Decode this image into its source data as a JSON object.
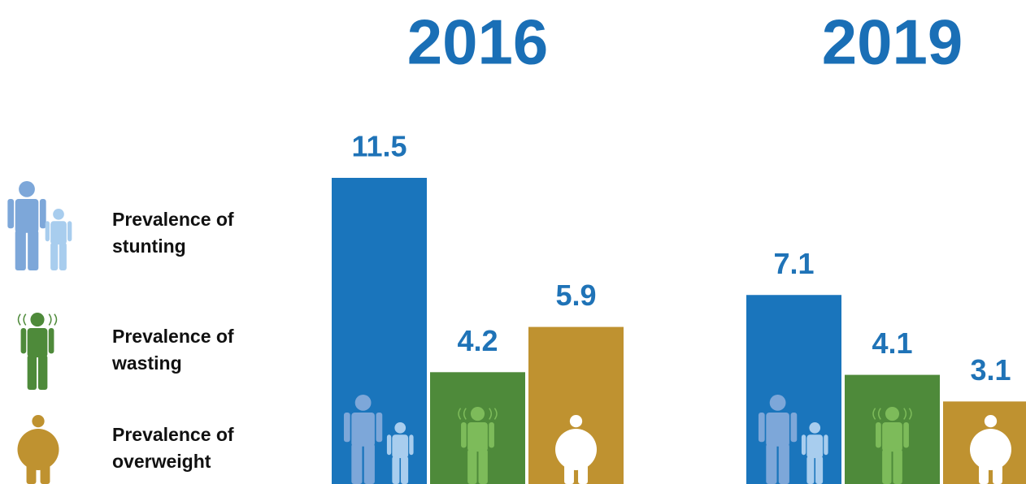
{
  "chart_data": {
    "type": "bar",
    "categories": [
      "2016",
      "2019"
    ],
    "series": [
      {
        "name": "Prevalence of stunting",
        "color": "#1a75bc",
        "values": [
          11.5,
          7.1
        ]
      },
      {
        "name": "Prevalence of wasting",
        "color": "#4e8a3a",
        "values": [
          4.2,
          4.1
        ]
      },
      {
        "name": "Prevalence of overweight",
        "color": "#bf9230",
        "values": [
          5.9,
          3.1
        ]
      }
    ]
  }
}
